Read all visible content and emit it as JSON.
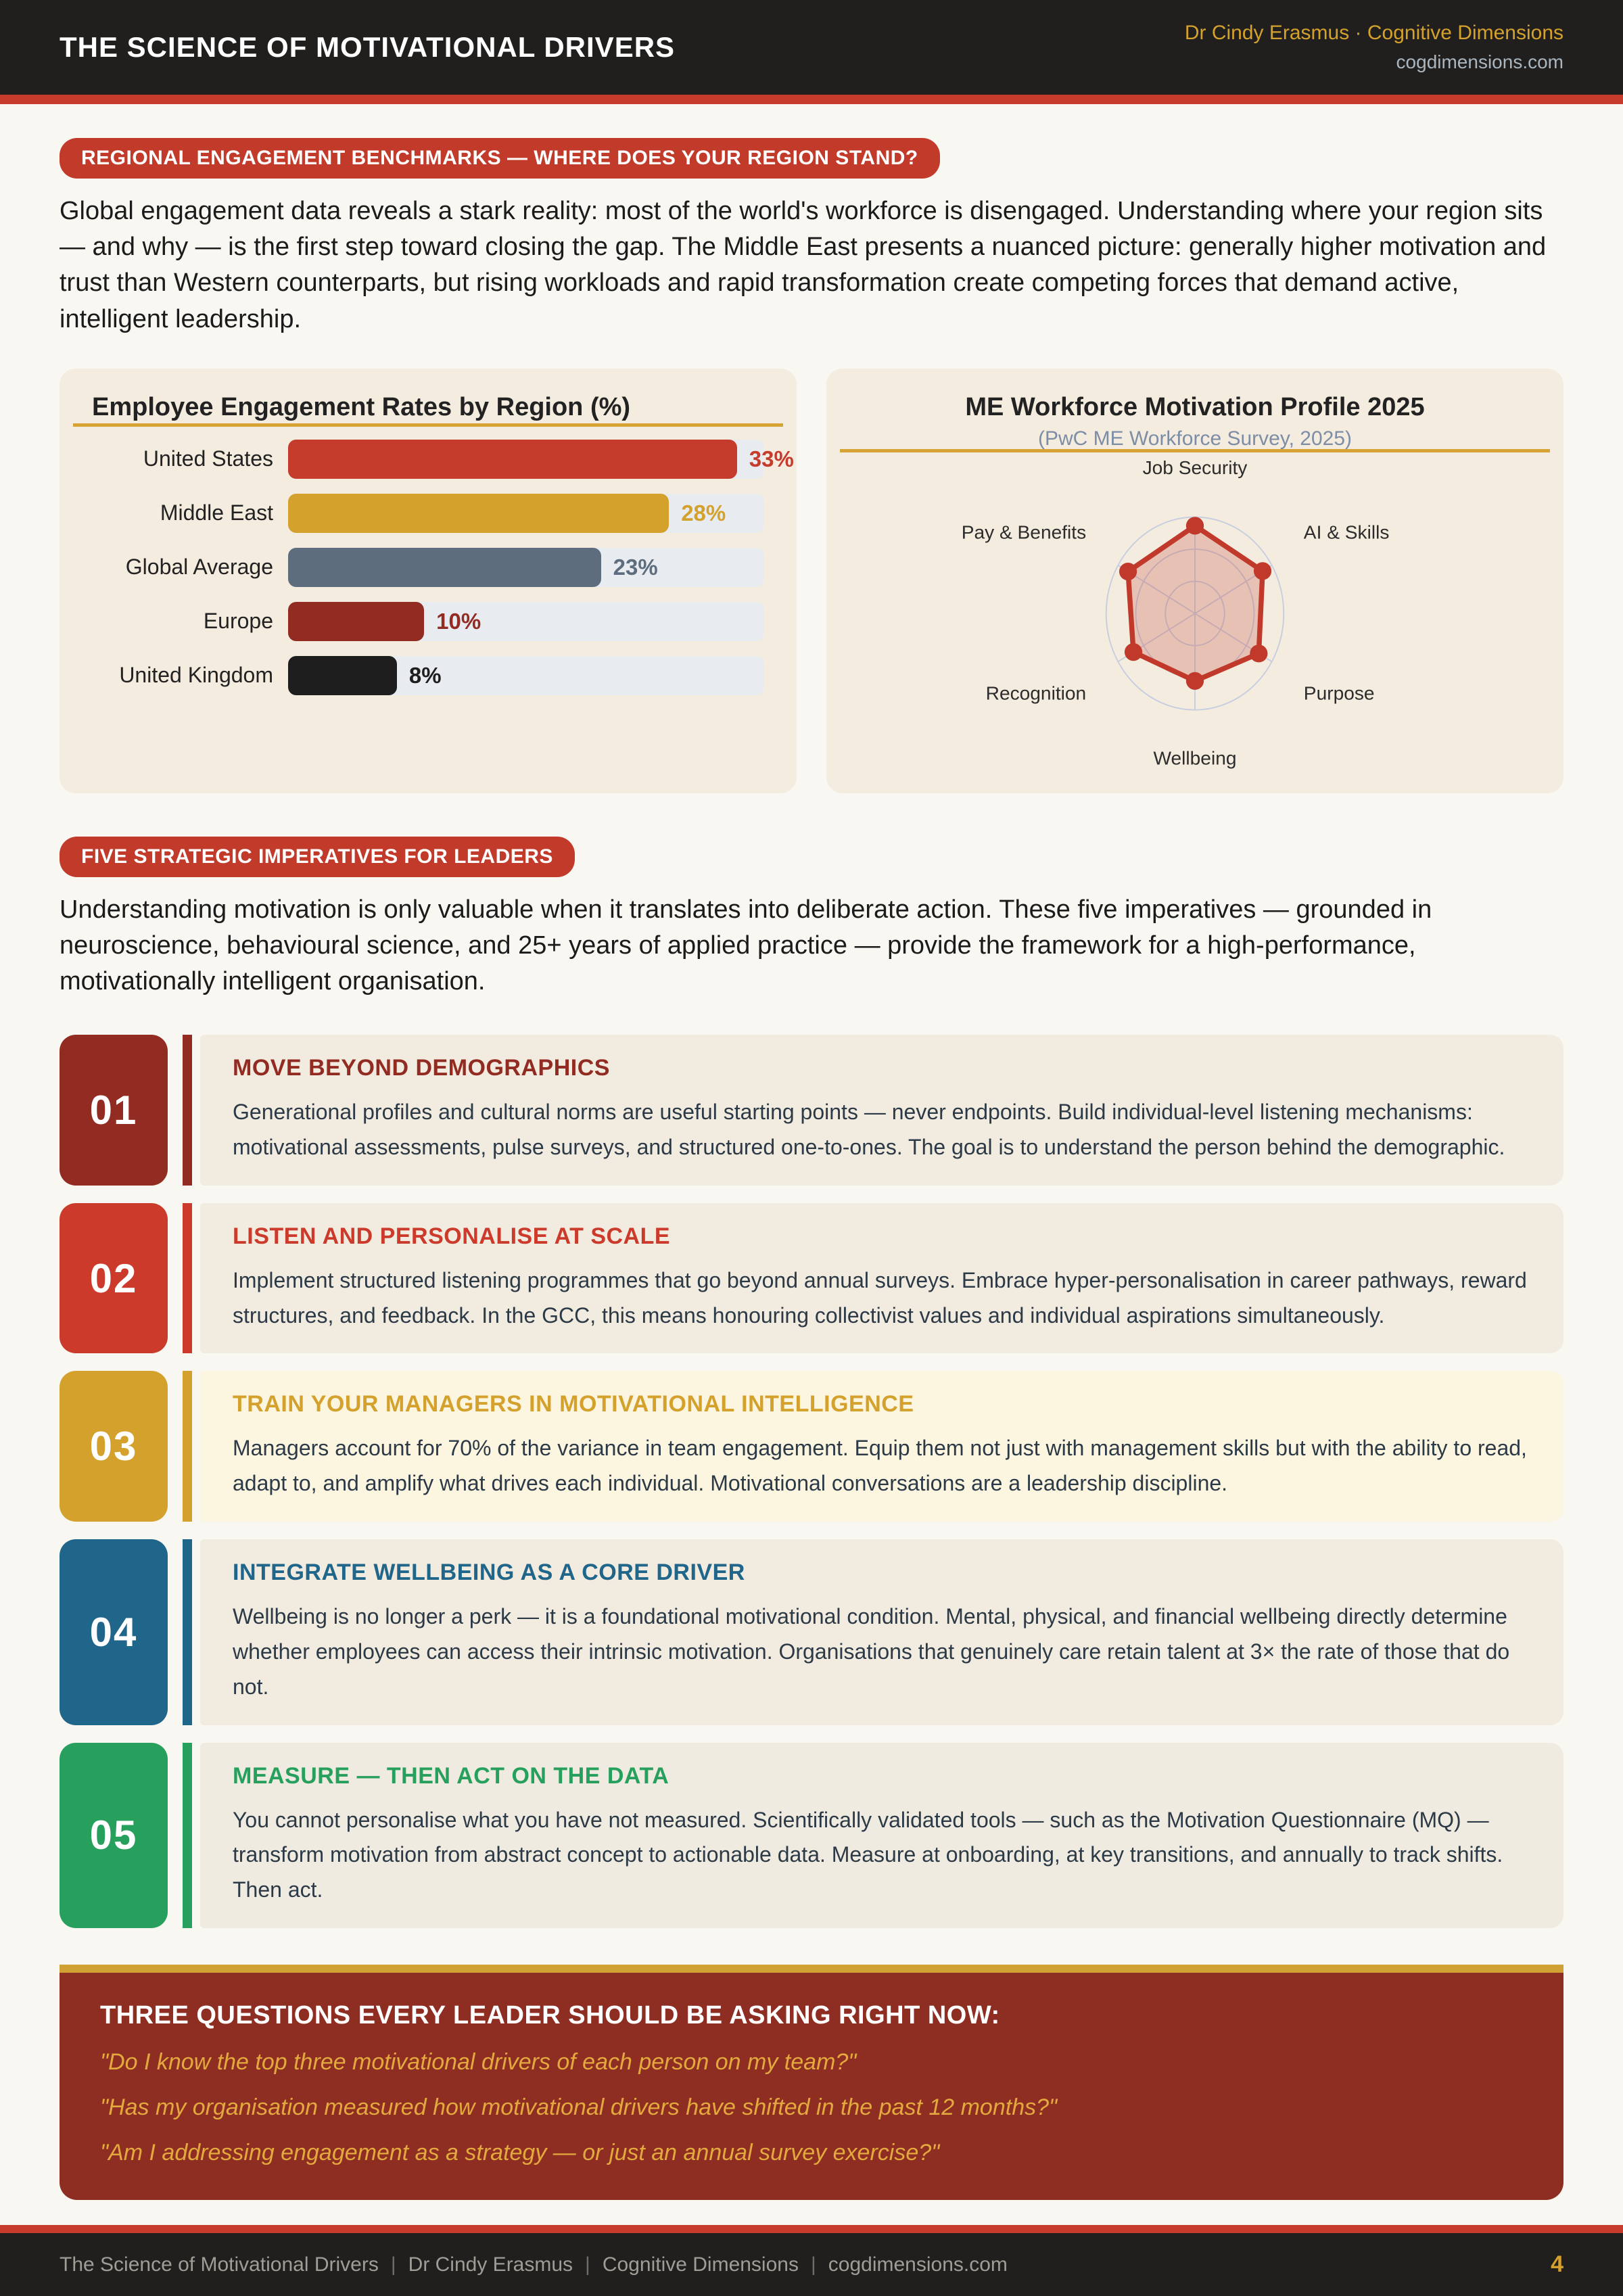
{
  "header": {
    "title": "THE SCIENCE OF MOTIVATIONAL DRIVERS",
    "byline": "Dr Cindy Erasmus · Cognitive Dimensions",
    "website": "cogdimensions.com"
  },
  "section_benchmarks": {
    "badge": "REGIONAL ENGAGEMENT BENCHMARKS — WHERE DOES YOUR REGION STAND?",
    "intro": "Global engagement data reveals a stark reality: most of the world's workforce is disengaged. Understanding where your region sits — and why — is the first step toward closing the gap. The Middle East presents a nuanced picture: generally higher motivation and trust than Western counterparts, but rising workloads and rapid transformation create competing forces that demand active, intelligent leadership."
  },
  "chart_data": [
    {
      "type": "bar",
      "orientation": "horizontal",
      "title": "Employee Engagement Rates by Region (%)",
      "categories": [
        "United States",
        "Middle East",
        "Global Average",
        "Europe",
        "United Kingdom"
      ],
      "values": [
        33,
        28,
        23,
        10,
        8
      ],
      "value_labels": [
        "33%",
        "28%",
        "23%",
        "10%",
        "8%"
      ],
      "bar_colors": [
        "#c53b2c",
        "#d4a12d",
        "#5d6d7e",
        "#922b21",
        "#1e1e1e"
      ],
      "xlim": [
        0,
        35
      ],
      "grid": false,
      "track_color": "#e8ecf0"
    },
    {
      "type": "radar",
      "title": "ME Workforce Motivation Profile 2025",
      "subtitle": "(PwC ME Workforce Survey, 2025)",
      "axes": [
        "Job Security",
        "AI & Skills",
        "Purpose",
        "Wellbeing",
        "Recognition",
        "Pay & Benefits"
      ],
      "values": [
        91,
        88,
        83,
        70,
        80,
        87
      ],
      "scale_max": 100,
      "rings": 3,
      "stroke_color": "#c0392b",
      "fill_color": "rgba(192,57,43,0.24)",
      "grid_color": "#c7cde0"
    }
  ],
  "section_imperatives": {
    "badge": "FIVE STRATEGIC IMPERATIVES FOR LEADERS",
    "intro": "Understanding motivation is only valuable when it translates into deliberate action. These five imperatives — grounded in neuroscience, behavioural science, and 25+ years of applied practice — provide the framework for a high-performance, motivationally intelligent organisation."
  },
  "imperatives": [
    {
      "number": "01",
      "title": "MOVE BEYOND DEMOGRAPHICS",
      "body": "Generational profiles and cultural norms are useful starting points — never endpoints. Build individual-level listening mechanisms: motivational assessments, pulse surveys, and structured one-to-ones. The goal is to understand the person behind the demographic.",
      "color": "#922b21",
      "card_bg": "#f2ebdf"
    },
    {
      "number": "02",
      "title": "LISTEN AND PERSONALISE AT SCALE",
      "body": "Implement structured listening programmes that go beyond annual surveys. Embrace hyper-personalisation in career pathways, reward structures, and feedback. In the GCC, this means honouring collectivist values and individual aspirations simultaneously.",
      "color": "#cb3a2a",
      "card_bg": "#f2ebdf"
    },
    {
      "number": "03",
      "title": "TRAIN YOUR MANAGERS IN MOTIVATIONAL INTELLIGENCE",
      "body": "Managers account for 70% of the variance in team engagement. Equip them not just with management skills but with the ability to read, adapt to, and amplify what drives each individual. Motivational conversations are a leadership discipline.",
      "color": "#d4a12d",
      "card_bg": "#fcf5e0"
    },
    {
      "number": "04",
      "title": "INTEGRATE WELLBEING AS A CORE DRIVER",
      "body": "Wellbeing is no longer a perk — it is a foundational motivational condition. Mental, physical, and financial wellbeing directly determine whether employees can access their intrinsic motivation. Organisations that genuinely care retain talent at 3× the rate of those that do not.",
      "color": "#20658a",
      "card_bg": "#f2ebdf"
    },
    {
      "number": "05",
      "title": "MEASURE — THEN ACT ON THE DATA",
      "body": "You cannot personalise what you have not measured. Scientifically validated tools — such as the Motivation Questionnaire (MQ) — transform motivation from abstract concept to actionable data. Measure at onboarding, at key transitions, and annually to track shifts. Then act.",
      "color": "#27a05e",
      "card_bg": "#f0ebe0"
    }
  ],
  "questions_box": {
    "heading": "THREE QUESTIONS EVERY LEADER SHOULD BE ASKING RIGHT NOW:",
    "questions": [
      "\"Do I know the top three motivational drivers of each person on my team?\"",
      "\"Has my organisation measured how motivational drivers have shifted in the past 12 months?\"",
      "\"Am I addressing engagement as a strategy — or just an annual survey exercise?\""
    ]
  },
  "footer": {
    "items": [
      "The Science of Motivational Drivers",
      "Dr Cindy Erasmus",
      "Cognitive Dimensions",
      "cogdimensions.com"
    ],
    "page": "4"
  },
  "colors": {
    "accent_red": "#c63b2b",
    "dark_red": "#922b21",
    "gold": "#d4a12d",
    "teal": "#20658a",
    "green": "#27a05e",
    "header_bg": "#211f1d",
    "page_bg": "#f8f7f1",
    "card_bg": "#f4ecdf"
  }
}
